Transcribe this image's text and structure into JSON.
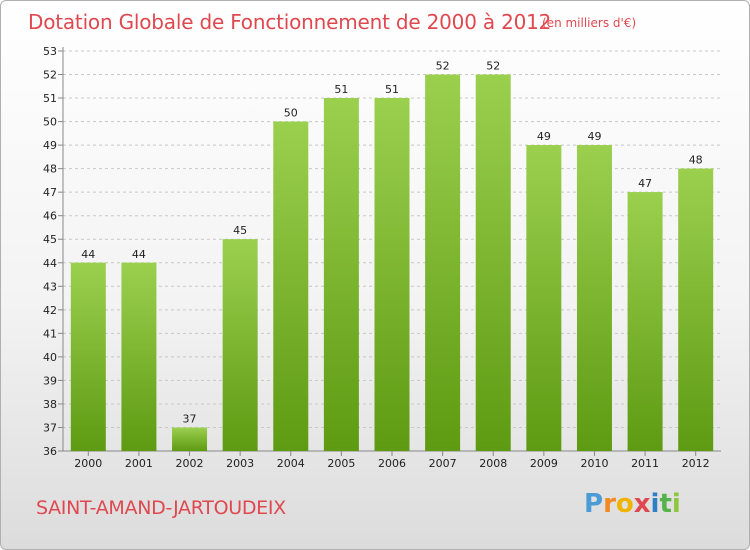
{
  "header": {
    "title": "Dotation Globale de Fonctionnement de 2000 à 2012",
    "unit": "(en milliers d'€)"
  },
  "footer": {
    "commune": "SAINT-AMAND-JARTOUDEIX",
    "logo_letters": [
      "P",
      "r",
      "o",
      "x",
      "i",
      "t",
      "i"
    ]
  },
  "colors": {
    "accent": "#e0484f",
    "bar_light": "#9bd04f",
    "bar_dark": "#5e9a12",
    "logo": [
      "#4b9bd6",
      "#f08a24",
      "#f0b400",
      "#e0484f",
      "#2f7fc6",
      "#56b24a",
      "#8fc63f"
    ]
  },
  "chart_data": {
    "type": "bar",
    "categories": [
      "2000",
      "2001",
      "2002",
      "2003",
      "2004",
      "2005",
      "2006",
      "2007",
      "2008",
      "2009",
      "2010",
      "2011",
      "2012"
    ],
    "values": [
      44,
      44,
      37,
      45,
      50,
      51,
      51,
      52,
      52,
      49,
      49,
      47,
      48
    ],
    "ylim": [
      36,
      53
    ],
    "yticks": [
      36,
      37,
      38,
      39,
      40,
      41,
      42,
      43,
      44,
      45,
      46,
      47,
      48,
      49,
      50,
      51,
      52,
      53
    ],
    "grid": true,
    "xlabel": "",
    "ylabel": ""
  }
}
